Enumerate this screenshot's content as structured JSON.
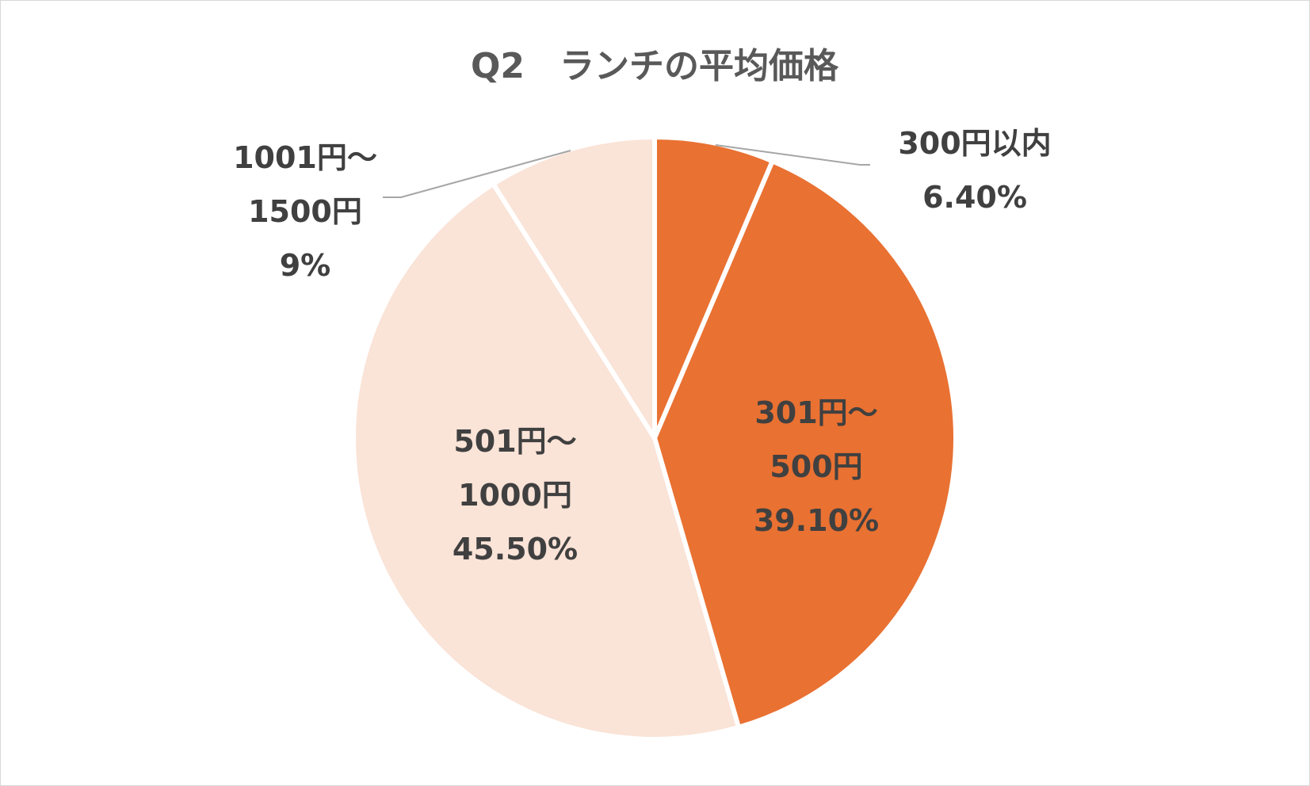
{
  "chart_data": {
    "type": "pie",
    "title": "Q2　ランチの平均価格",
    "start_angle_deg": 0,
    "direction": "clockwise",
    "slices": [
      {
        "label_lines": [
          "300円以内",
          "6.40%"
        ],
        "name": "300円以内",
        "value": 6.4,
        "color": "#E97132"
      },
      {
        "label_lines": [
          "301円～",
          "500円",
          "39.10%"
        ],
        "name": "301円～500円",
        "value": 39.1,
        "color": "#E97132"
      },
      {
        "label_lines": [
          "501円～",
          "1000円",
          "45.50%"
        ],
        "name": "501円～1000円",
        "value": 45.5,
        "color": "#FAE3D7"
      },
      {
        "label_lines": [
          "1001円～",
          "1500円",
          "9%"
        ],
        "name": "1001円～1500円",
        "value": 9,
        "color": "#FAE3D7"
      }
    ],
    "label_color": "#404040",
    "leader_line_color": "#a6a6a6",
    "slice_border_color": "#ffffff"
  }
}
